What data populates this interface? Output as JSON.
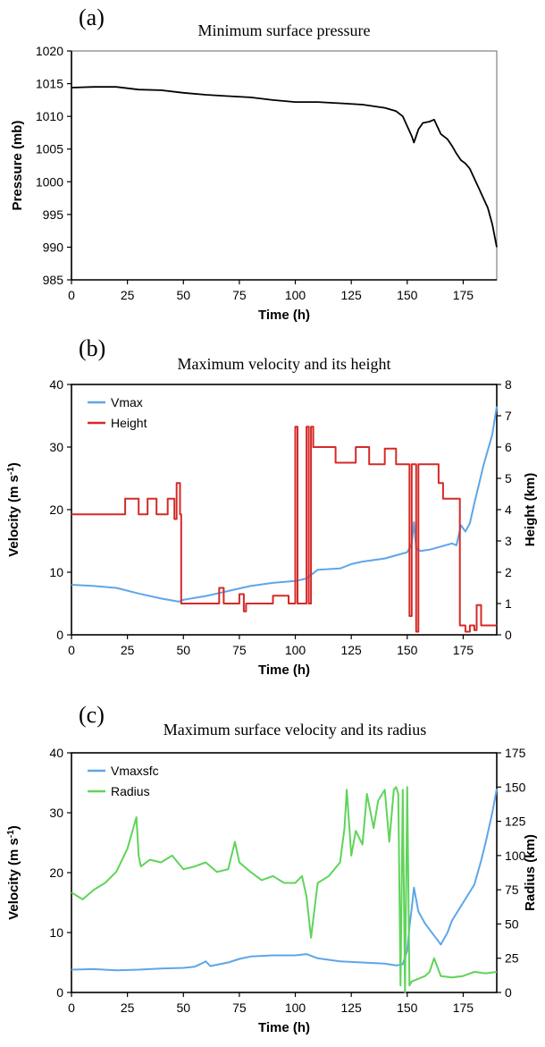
{
  "chart_data": [
    {
      "tag": "(a)",
      "type": "line",
      "title": "Minimum surface pressure",
      "xlabel": "Time (h)",
      "ylabel": "Pressure (mb)",
      "xlim": [
        0,
        190
      ],
      "ylim": [
        985,
        1020
      ],
      "xticks": [
        0,
        25,
        50,
        75,
        100,
        125,
        150,
        175
      ],
      "yticks": [
        985,
        990,
        995,
        1000,
        1005,
        1010,
        1015,
        1020
      ],
      "grid": false,
      "series": [
        {
          "color": "#000000",
          "x": [
            0,
            10,
            20,
            25,
            30,
            40,
            50,
            60,
            70,
            80,
            90,
            100,
            110,
            120,
            130,
            140,
            145,
            148,
            150,
            152,
            153,
            155,
            157,
            160,
            162,
            165,
            168,
            170,
            172,
            174,
            176,
            178,
            180,
            182,
            184,
            186,
            188,
            190
          ],
          "y": [
            1014.4,
            1014.5,
            1014.5,
            1014.3,
            1014.1,
            1014.0,
            1013.6,
            1013.3,
            1013.1,
            1012.9,
            1012.5,
            1012.2,
            1012.2,
            1012.0,
            1011.8,
            1011.3,
            1010.8,
            1010.0,
            1008.5,
            1007.0,
            1006.0,
            1008.0,
            1009.0,
            1009.2,
            1009.5,
            1007.3,
            1006.5,
            1005.5,
            1004.3,
            1003.3,
            1002.8,
            1002.0,
            1000.5,
            999.0,
            997.5,
            996.0,
            993.5,
            990.0
          ]
        }
      ]
    },
    {
      "tag": "(b)",
      "type": "line",
      "title": "Maximum velocity and its height",
      "xlabel": "Time (h)",
      "ylabel": "Velocity (m s",
      "ylabel_sup": "-1",
      "ylabel_end": ")",
      "y2label": "Height (km)",
      "xlim": [
        0,
        190
      ],
      "ylim": [
        0,
        40
      ],
      "y2lim": [
        0,
        8
      ],
      "xticks": [
        0,
        25,
        50,
        75,
        100,
        125,
        150,
        175
      ],
      "yticks": [
        0,
        10,
        20,
        30,
        40
      ],
      "y2ticks": [
        0,
        1,
        2,
        3,
        4,
        5,
        6,
        7,
        8
      ],
      "legend": "top-left",
      "grid": false,
      "series": [
        {
          "name": "Vmax",
          "axis": "left",
          "color": "#5da6e8",
          "x": [
            0,
            10,
            20,
            30,
            40,
            48,
            50,
            60,
            70,
            80,
            90,
            100,
            105,
            110,
            120,
            125,
            130,
            140,
            150,
            152,
            153,
            154,
            156,
            160,
            170,
            172,
            174,
            176,
            178,
            180,
            182,
            184,
            186,
            188,
            190
          ],
          "y": [
            8.0,
            7.8,
            7.5,
            6.6,
            5.8,
            5.3,
            5.6,
            6.2,
            7.0,
            7.8,
            8.3,
            8.6,
            9.0,
            10.4,
            10.6,
            11.3,
            11.7,
            12.2,
            13.2,
            14.5,
            18.0,
            13.8,
            13.4,
            13.6,
            14.6,
            14.3,
            17.5,
            16.5,
            17.8,
            21.0,
            24.0,
            27.0,
            29.5,
            32.0,
            36.5
          ]
        },
        {
          "name": "Height",
          "axis": "right",
          "color": "#d42a28",
          "x": [
            0,
            24,
            24,
            30,
            30,
            34,
            34,
            38,
            38,
            43,
            43,
            46,
            46,
            47,
            47,
            48.5,
            48.5,
            49,
            49,
            66,
            66,
            68,
            68,
            75,
            75,
            77,
            77,
            78,
            78,
            90,
            90,
            97,
            97,
            100,
            100,
            101,
            101,
            105,
            105,
            106,
            106,
            107,
            107,
            108,
            108,
            110,
            110,
            118,
            118,
            127,
            127,
            133,
            133,
            140,
            140,
            145,
            145,
            151,
            151,
            152,
            152,
            154,
            154,
            155,
            155,
            164,
            164,
            166,
            166,
            172,
            172,
            173.5,
            173.5,
            176,
            176,
            178,
            178,
            180,
            180,
            181,
            181,
            183,
            183,
            190
          ],
          "y": [
            3.85,
            3.85,
            4.35,
            4.35,
            3.85,
            3.85,
            4.35,
            4.35,
            3.85,
            3.85,
            4.35,
            4.35,
            3.7,
            3.7,
            4.85,
            4.85,
            3.85,
            3.85,
            1.0,
            1.0,
            1.5,
            1.5,
            1.0,
            1.0,
            1.3,
            1.3,
            0.75,
            0.75,
            1.0,
            1.0,
            1.25,
            1.25,
            1.0,
            1.0,
            6.65,
            6.65,
            1.0,
            1.0,
            6.65,
            6.65,
            1.0,
            1.0,
            6.65,
            6.65,
            6.0,
            6.0,
            6.0,
            6.0,
            5.5,
            5.5,
            6.0,
            6.0,
            5.45,
            5.45,
            5.95,
            5.95,
            5.45,
            5.45,
            0.6,
            0.6,
            5.45,
            5.45,
            0.1,
            0.1,
            5.45,
            5.45,
            4.85,
            4.85,
            4.35,
            4.35,
            4.35,
            4.35,
            0.3,
            0.3,
            0.1,
            0.1,
            0.3,
            0.3,
            0.15,
            0.15,
            0.95,
            0.95,
            0.3,
            0.3
          ]
        }
      ]
    },
    {
      "tag": "(c)",
      "type": "line",
      "title": "Maximum surface velocity and its radius",
      "xlabel": "Time (h)",
      "ylabel": "Velocity (m s",
      "ylabel_sup": "-1",
      "ylabel_end": ")",
      "y2label": "Radius (km)",
      "xlim": [
        0,
        190
      ],
      "ylim": [
        0,
        40
      ],
      "y2lim": [
        0,
        175
      ],
      "xticks": [
        0,
        25,
        50,
        75,
        100,
        125,
        150,
        175
      ],
      "yticks": [
        0,
        10,
        20,
        30,
        40
      ],
      "y2ticks": [
        0,
        25,
        50,
        75,
        100,
        125,
        150,
        175
      ],
      "legend": "top-left",
      "grid": false,
      "series": [
        {
          "name": "Vmaxsfc",
          "axis": "left",
          "color": "#5da6e8",
          "x": [
            0,
            10,
            20,
            30,
            40,
            50,
            55,
            58,
            60,
            62,
            70,
            75,
            80,
            90,
            100,
            105,
            110,
            120,
            130,
            140,
            145,
            148,
            150,
            151,
            152,
            153,
            155,
            158,
            160,
            163,
            165,
            168,
            170,
            175,
            180,
            183,
            185,
            188,
            190
          ],
          "y": [
            3.8,
            3.9,
            3.7,
            3.8,
            4.0,
            4.1,
            4.3,
            4.8,
            5.2,
            4.4,
            5.0,
            5.6,
            6.0,
            6.2,
            6.2,
            6.4,
            5.7,
            5.2,
            5.0,
            4.8,
            4.5,
            4.7,
            7.0,
            11.0,
            14.0,
            17.5,
            13.5,
            11.5,
            10.5,
            9.0,
            8.0,
            10.0,
            12.0,
            15.0,
            18.0,
            22.0,
            25.0,
            30.0,
            34.0
          ]
        },
        {
          "name": "Radius",
          "axis": "right",
          "color": "#5fd45a",
          "x": [
            0,
            5,
            10,
            15,
            20,
            25,
            29,
            30,
            31,
            35,
            40,
            45,
            50,
            55,
            60,
            65,
            70,
            73,
            75,
            80,
            85,
            90,
            95,
            100,
            103,
            105,
            107,
            110,
            115,
            120,
            122,
            123,
            125,
            127,
            130,
            132,
            135,
            137,
            140,
            142,
            144,
            145,
            146,
            147,
            148,
            149,
            150,
            151,
            152,
            155,
            158,
            160,
            162,
            165,
            170,
            175,
            180,
            185,
            190
          ],
          "y": [
            73,
            68,
            75,
            80,
            88,
            105,
            128,
            100,
            92,
            97,
            95,
            100,
            90,
            92,
            95,
            88,
            90,
            110,
            95,
            88,
            82,
            85,
            80,
            80,
            85,
            70,
            40,
            80,
            85,
            95,
            120,
            148,
            100,
            118,
            108,
            145,
            120,
            140,
            148,
            110,
            148,
            150,
            145,
            5,
            148,
            0,
            150,
            5,
            8,
            10,
            12,
            15,
            25,
            12,
            11,
            12,
            15,
            14,
            15
          ]
        }
      ]
    }
  ]
}
